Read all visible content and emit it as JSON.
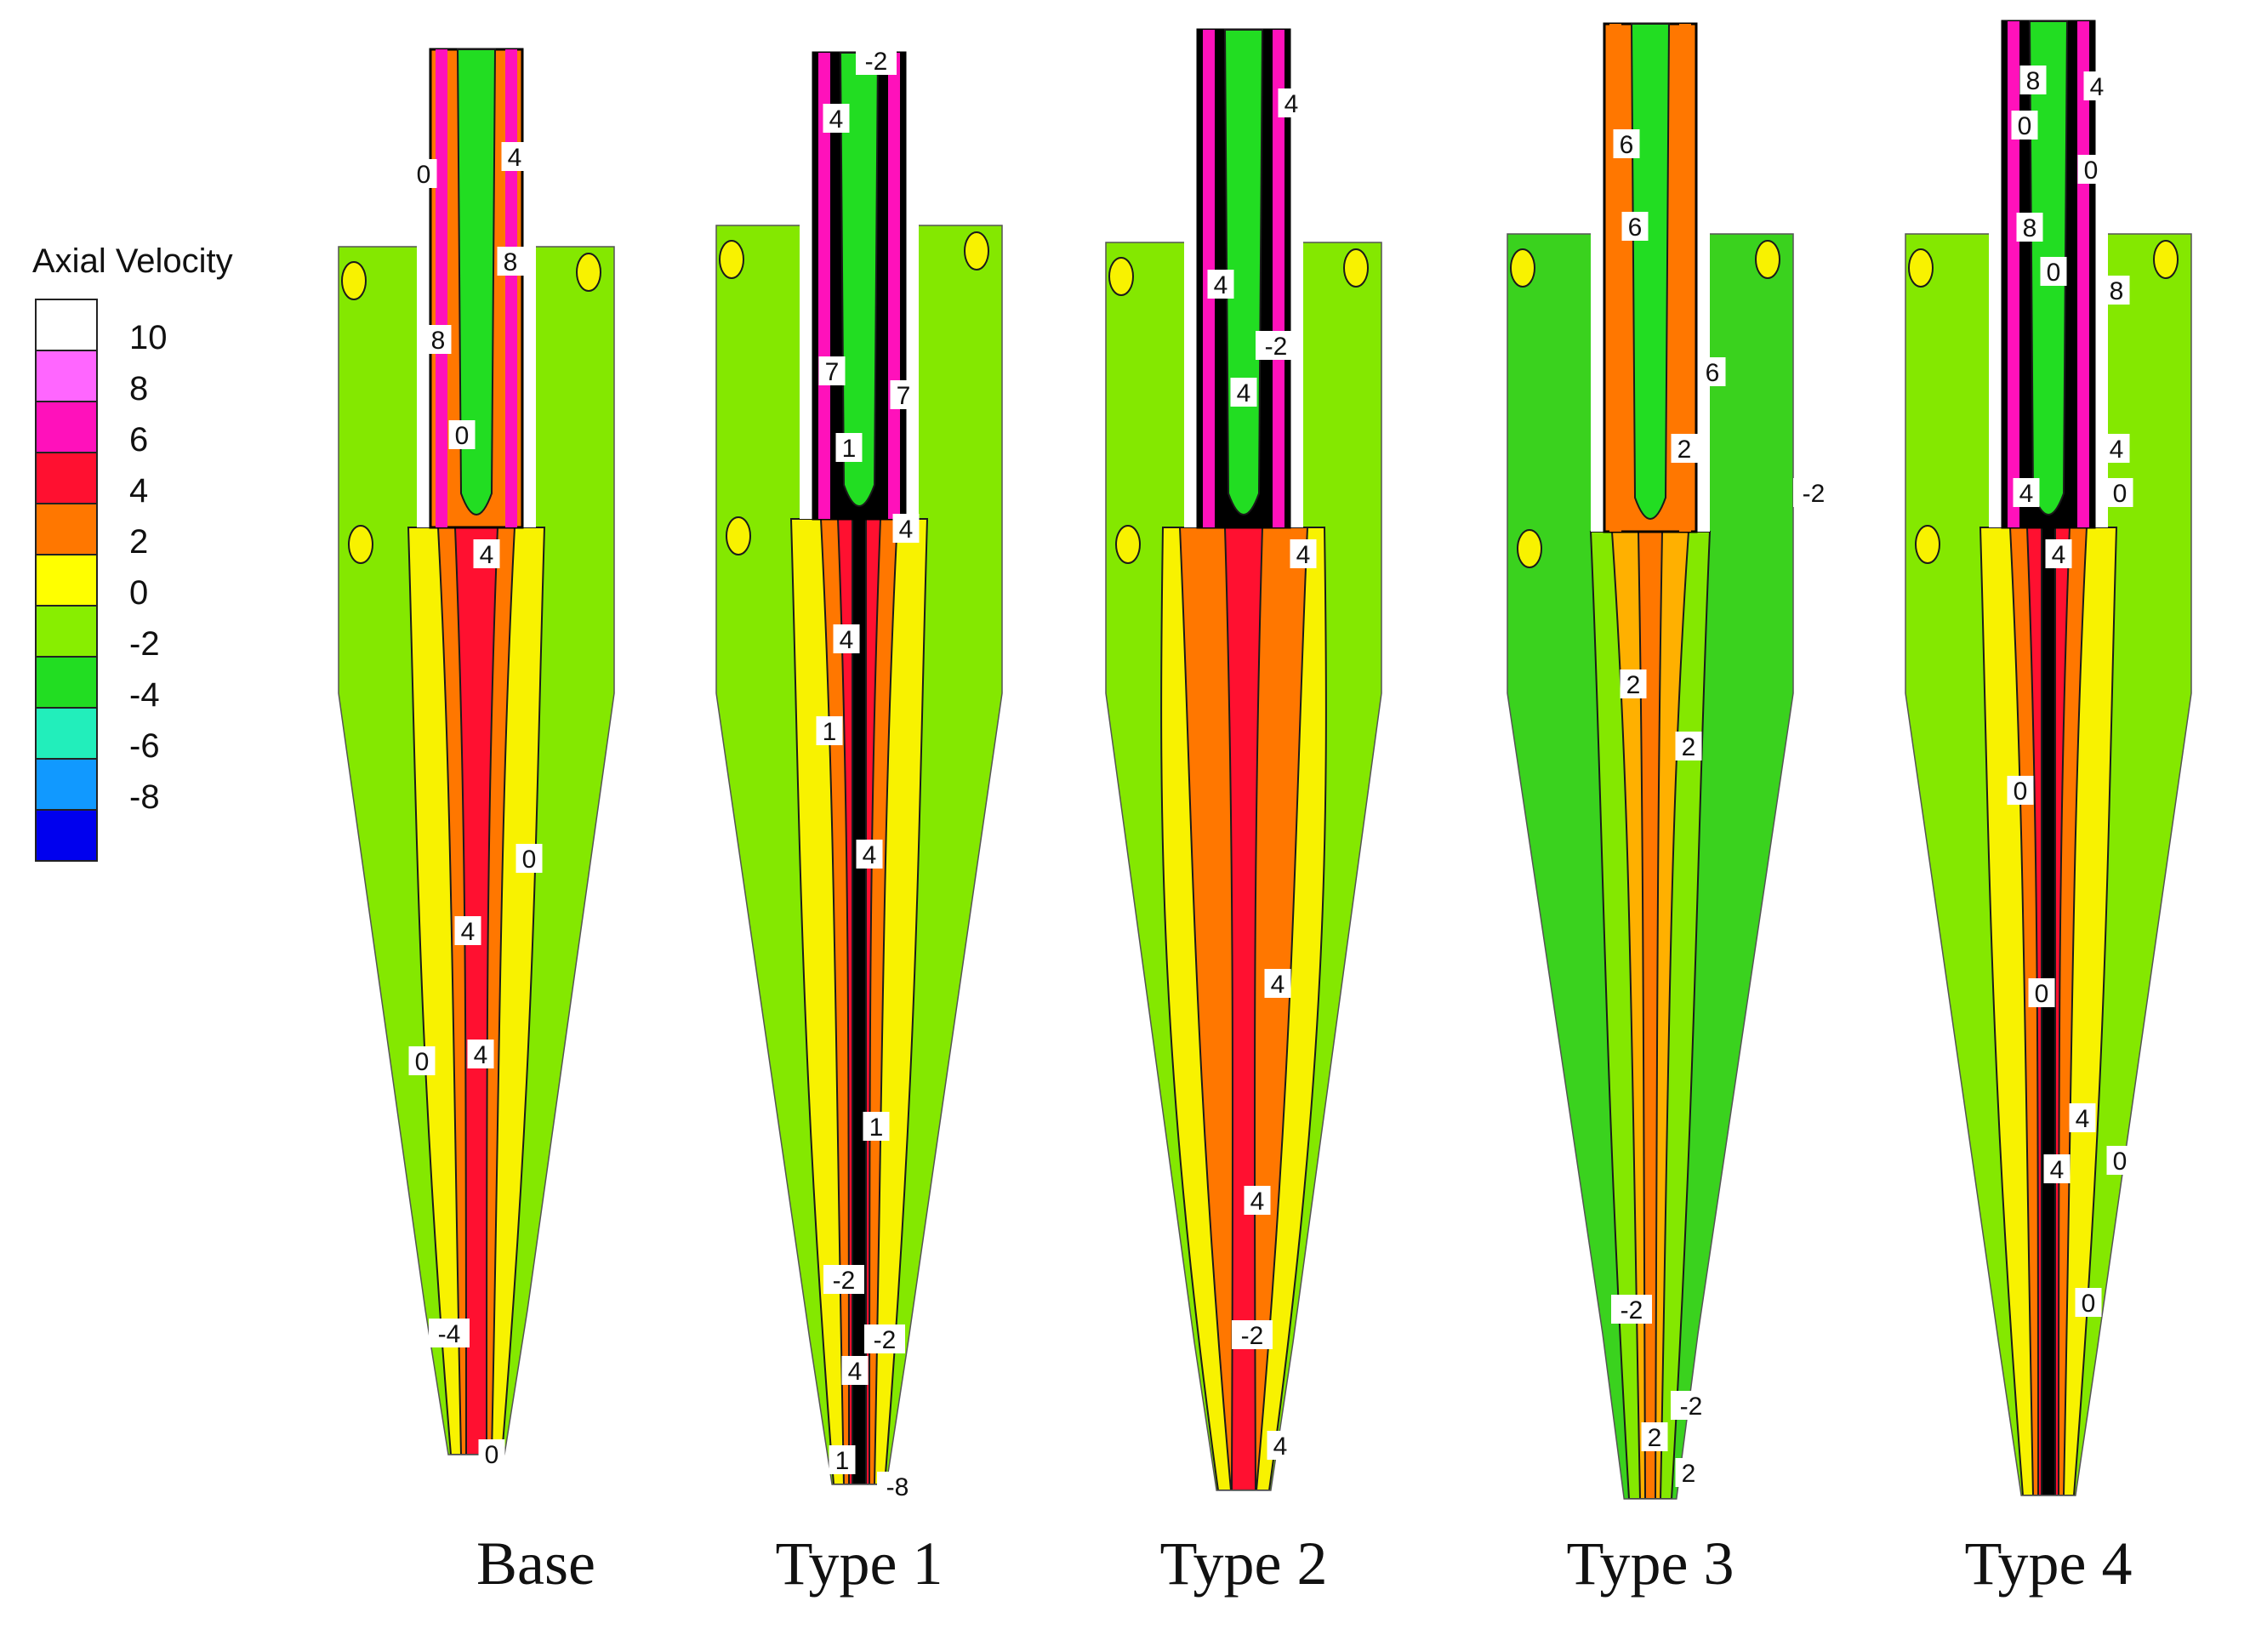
{
  "legend": {
    "title": "Axial Velocity",
    "levels": [
      {
        "label": "10",
        "color": "#ffffff"
      },
      {
        "label": "8",
        "color": "#ff66ff"
      },
      {
        "label": "6",
        "color": "#ff11bb"
      },
      {
        "label": "4",
        "color": "#ff1030"
      },
      {
        "label": "2",
        "color": "#ff7700"
      },
      {
        "label": "0",
        "color": "#ffff00"
      },
      {
        "label": "-2",
        "color": "#88ee00"
      },
      {
        "label": "-4",
        "color": "#22dd22"
      },
      {
        "label": "-6",
        "color": "#22eebb"
      },
      {
        "label": "-8",
        "color": "#1199ff"
      },
      {
        "label": "",
        "color": "#0000ee"
      }
    ]
  },
  "colors": {
    "outer": "#84e800",
    "outer_dark": "#3ad21e",
    "yellow": "#f8f200",
    "orange": "#ff7700",
    "red": "#ff1030",
    "magenta": "#ff11bb",
    "pink": "#ff66ff",
    "black": "#000000",
    "green": "#22dd22",
    "contour": "#1a1a1a"
  },
  "panels": [
    {
      "caption": "Base",
      "contour_labels": [
        "0",
        "4",
        "8",
        "8",
        "0",
        "4",
        "0",
        "4",
        "0",
        "4",
        "-4",
        "0"
      ]
    },
    {
      "caption": "Type 1",
      "contour_labels": [
        "-2",
        "4",
        "7",
        "7",
        "1",
        "4",
        "4",
        "1",
        "4",
        "1",
        "-2",
        "-2",
        "4",
        "1",
        "-8"
      ]
    },
    {
      "caption": "Type 2",
      "contour_labels": [
        "4",
        "4",
        "-2",
        "4",
        "4",
        "4",
        "4",
        "-2",
        "4"
      ]
    },
    {
      "caption": "Type 3",
      "contour_labels": [
        "6",
        "6",
        "6",
        "2",
        "-2",
        "2",
        "2",
        "-2",
        "-2",
        "2",
        "2"
      ]
    },
    {
      "caption": "Type 4",
      "contour_labels": [
        "8",
        "4",
        "0",
        "0",
        "8",
        "0",
        "8",
        "4",
        "4",
        "0",
        "4",
        "0",
        "0",
        "4",
        "4",
        "0",
        "0"
      ]
    }
  ]
}
